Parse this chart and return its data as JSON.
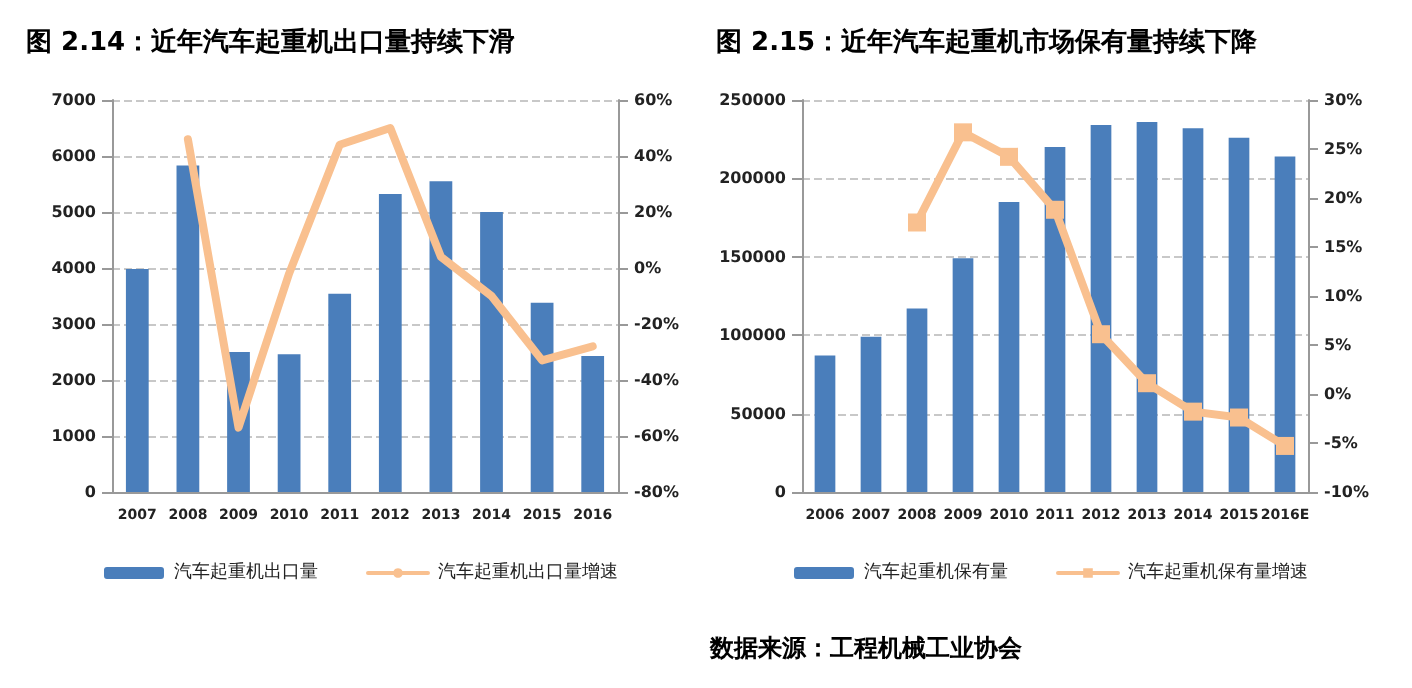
{
  "chart_data": [
    {
      "type": "bar",
      "title": "图 2.14：近年汽车起重机出口量持续下滑",
      "categories": [
        "2007",
        "2008",
        "2009",
        "2010",
        "2011",
        "2012",
        "2013",
        "2014",
        "2015",
        "2016"
      ],
      "series": [
        {
          "name": "汽车起重机出口量",
          "color": "#4a7ebb",
          "values": [
            3980,
            5830,
            2500,
            2460,
            3540,
            5320,
            5550,
            5000,
            3380,
            2430
          ]
        },
        {
          "name": "汽车起重机出口量增速",
          "type": "line",
          "axis": "y2",
          "color": "#f9c08f",
          "values": [
            null,
            46,
            -57,
            -2,
            44,
            50,
            4,
            -10,
            -33,
            -28
          ]
        }
      ],
      "ylim": [
        0,
        7000
      ],
      "yticks": [
        0,
        1000,
        2000,
        3000,
        4000,
        5000,
        6000,
        7000
      ],
      "y2lim": [
        -80,
        60
      ],
      "y2ticks": [
        {
          "value": -80,
          "label": "-80%"
        },
        {
          "value": -60,
          "label": "-60%"
        },
        {
          "value": -40,
          "label": "-40%"
        },
        {
          "value": -20,
          "label": "-20%"
        },
        {
          "value": 0,
          "label": "0%"
        },
        {
          "value": 20,
          "label": "20%"
        },
        {
          "value": 40,
          "label": "40%"
        },
        {
          "value": 60,
          "label": "60%"
        }
      ],
      "grid": "y",
      "legend": "bottom",
      "line_style": "solid"
    },
    {
      "type": "bar",
      "title": "图 2.15：近年汽车起重机市场保有量持续下降",
      "categories": [
        "2006",
        "2007",
        "2008",
        "2009",
        "2010",
        "2011",
        "2012",
        "2013",
        "2014",
        "2015",
        "2016E"
      ],
      "series": [
        {
          "name": "汽车起重机保有量",
          "color": "#4a7ebb",
          "values": [
            87000,
            99000,
            117000,
            149000,
            185000,
            220000,
            234000,
            236000,
            232000,
            226000,
            214000
          ]
        },
        {
          "name": "汽车起重机保有量增速",
          "type": "line",
          "axis": "y2",
          "color": "#f9c08f",
          "values": [
            null,
            null,
            17.5,
            26.7,
            24.2,
            18.8,
            6.1,
            1.1,
            -1.8,
            -2.4,
            -5.3
          ]
        }
      ],
      "ylim": [
        0,
        250000
      ],
      "yticks": [
        0,
        50000,
        100000,
        150000,
        200000,
        250000
      ],
      "y2lim": [
        -10,
        30
      ],
      "y2ticks": [
        {
          "value": -10,
          "label": "-10%"
        },
        {
          "value": -5,
          "label": "-5%"
        },
        {
          "value": 0,
          "label": "0%"
        },
        {
          "value": 5,
          "label": "5%"
        },
        {
          "value": 10,
          "label": "10%"
        },
        {
          "value": 15,
          "label": "15%"
        },
        {
          "value": 20,
          "label": "20%"
        },
        {
          "value": 25,
          "label": "25%"
        },
        {
          "value": 30,
          "label": "30%"
        }
      ],
      "grid": "y",
      "legend": "bottom",
      "marker": "square",
      "line_style": "solid",
      "annotations": [
        "数据来源：工程机械工业协会"
      ]
    }
  ]
}
